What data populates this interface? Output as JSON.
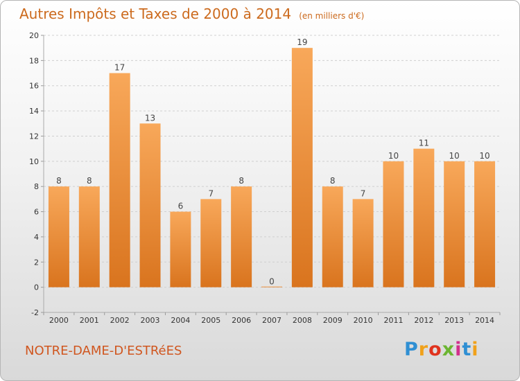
{
  "header": {
    "title": "Autres Impôts et Taxes de 2000 à 2014",
    "subtitle": "(en milliers d'€)"
  },
  "footer": {
    "commune": "NOTRE-DAME-D'ESTRéES",
    "logo_text": "Proxiti"
  },
  "chart_data": {
    "type": "bar",
    "title": "Autres Impôts et Taxes de 2000 à 2014",
    "subtitle": "(en milliers d'€)",
    "xlabel": "",
    "ylabel": "",
    "categories": [
      "2000",
      "2001",
      "2002",
      "2003",
      "2004",
      "2005",
      "2006",
      "2007",
      "2008",
      "2009",
      "2010",
      "2011",
      "2012",
      "2013",
      "2014"
    ],
    "values": [
      8,
      8,
      17,
      13,
      6,
      7,
      8,
      0,
      19,
      8,
      7,
      10,
      11,
      10,
      10
    ],
    "ylim": [
      -2,
      20
    ],
    "yticks": [
      -2,
      0,
      2,
      4,
      6,
      8,
      10,
      12,
      14,
      16,
      18,
      20
    ],
    "grid": "horizontal dashed",
    "legend": "none",
    "bar_color": "#f08c2a"
  },
  "colors": {
    "accent": "#d0561f",
    "bar_light": "#f8a85a",
    "bar_dark": "#d9741e"
  }
}
